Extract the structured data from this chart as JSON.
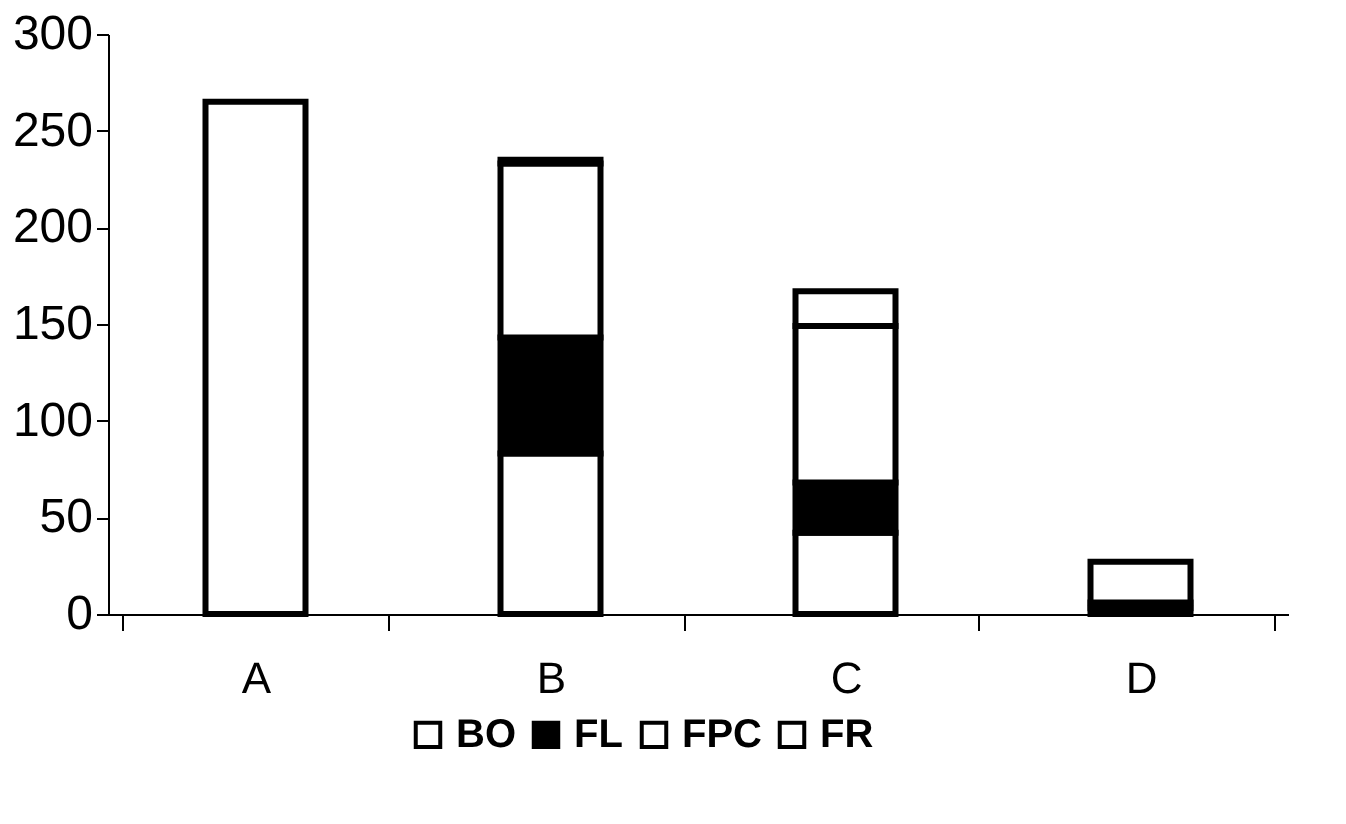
{
  "chart_data": {
    "type": "bar",
    "stacked": true,
    "categories": [
      "A",
      "B",
      "C",
      "D"
    ],
    "series": [
      {
        "name": "BO",
        "color": "#ffffff",
        "values": [
          265,
          83,
          42,
          3
        ]
      },
      {
        "name": "FL",
        "color": "#000000",
        "values": [
          0,
          60,
          26,
          3
        ]
      },
      {
        "name": "FPC",
        "color": "#ffffff",
        "values": [
          0,
          90,
          81,
          21
        ]
      },
      {
        "name": "FR",
        "color": "#ffffff",
        "values": [
          0,
          2,
          18,
          0
        ]
      }
    ],
    "ylim": [
      0,
      300
    ],
    "yticks": [
      0,
      50,
      100,
      150,
      200,
      250,
      300
    ],
    "grid": false,
    "legend": "bottom"
  }
}
